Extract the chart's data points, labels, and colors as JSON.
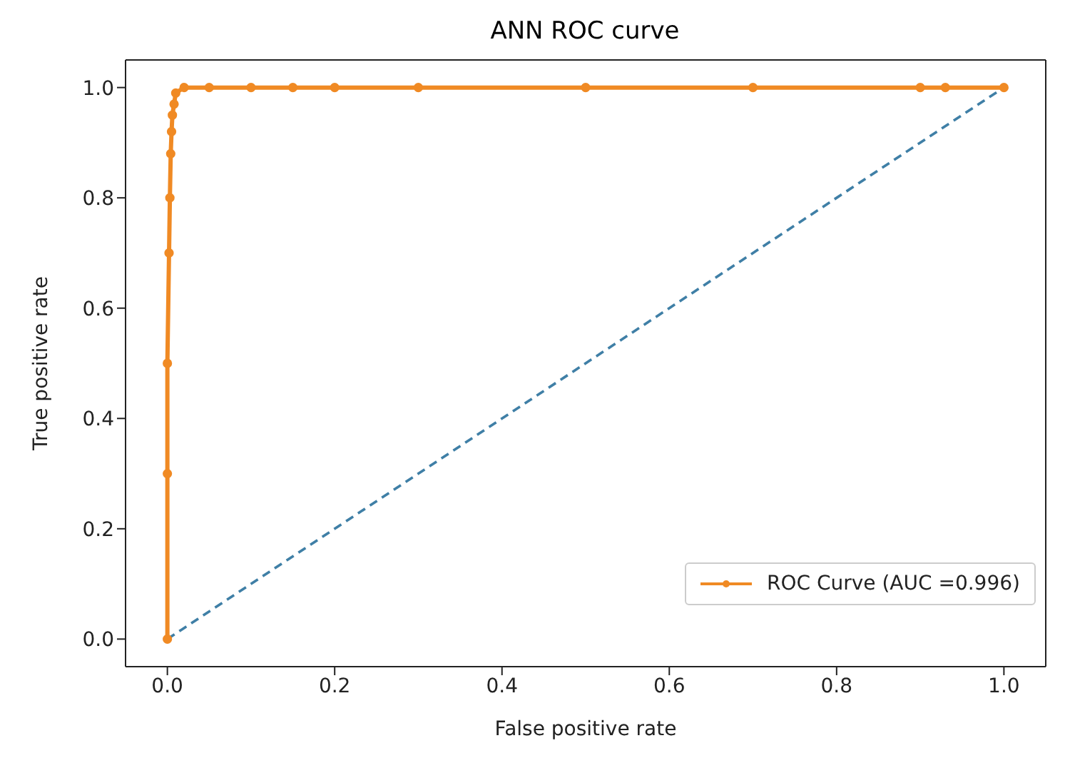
{
  "chart_data": {
    "type": "line",
    "title": "ANN ROC curve",
    "xlabel": "False positive rate",
    "ylabel": "True positive rate",
    "xlim": [
      -0.05,
      1.05
    ],
    "ylim": [
      -0.05,
      1.05
    ],
    "xticks": [
      {
        "value": 0,
        "label": "0.0"
      },
      {
        "value": 0.2,
        "label": "0.2"
      },
      {
        "value": 0.4,
        "label": "0.4"
      },
      {
        "value": 0.6,
        "label": "0.6"
      },
      {
        "value": 0.8,
        "label": "0.8"
      },
      {
        "value": 1,
        "label": "1.0"
      }
    ],
    "yticks": [
      {
        "value": 0,
        "label": "0.0"
      },
      {
        "value": 0.2,
        "label": "0.2"
      },
      {
        "value": 0.4,
        "label": "0.4"
      },
      {
        "value": 0.6,
        "label": "0.6"
      },
      {
        "value": 0.8,
        "label": "0.8"
      },
      {
        "value": 1,
        "label": "1.0"
      }
    ],
    "legend": "bottom right",
    "series": [
      {
        "name": "ROC Curve (AUC =0.996)",
        "color": "#f08a24",
        "marker": "circle",
        "line_style": "solid",
        "x": [
          0,
          0,
          0,
          0.002,
          0.003,
          0.004,
          0.005,
          0.006,
          0.008,
          0.01,
          0.02,
          0.05,
          0.1,
          0.15,
          0.2,
          0.3,
          0.5,
          0.7,
          0.9,
          0.93,
          1
        ],
        "values": [
          0,
          0.3,
          0.5,
          0.7,
          0.8,
          0.88,
          0.92,
          0.95,
          0.97,
          0.99,
          1,
          1,
          1,
          1,
          1,
          1,
          1,
          1,
          1,
          1,
          1
        ]
      },
      {
        "color": "#3f7fa6",
        "marker": "none",
        "line_style": "dashed",
        "x": [
          0,
          1
        ],
        "values": [
          0,
          1
        ]
      }
    ]
  }
}
